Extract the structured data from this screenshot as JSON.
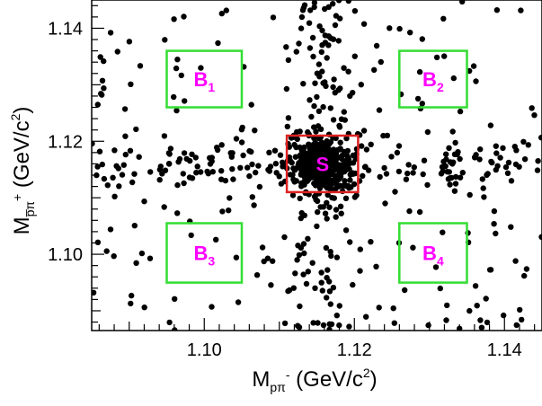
{
  "chart_data": {
    "type": "scatter",
    "title": "",
    "xlabel": {
      "main": "M",
      "sub": "pπ",
      "sup": "-",
      "unit": " (GeV/c",
      "unit_sup": "2",
      "close": ")"
    },
    "ylabel": {
      "main": "M",
      "sub": "p̅π",
      "sup": "+",
      "unit": " (GeV/c",
      "unit_sup": "2",
      "close": ")"
    },
    "xlim": [
      1.085,
      1.145
    ],
    "ylim": [
      1.0865,
      1.145
    ],
    "xticks": [
      1.1,
      1.12,
      1.14
    ],
    "yticks": [
      1.1,
      1.12,
      1.14
    ],
    "xtick_labels": [
      "1.10",
      "1.12",
      "1.14"
    ],
    "ytick_labels": [
      "1.10",
      "1.12",
      "1.14"
    ],
    "grid": false,
    "regions": [
      {
        "name": "B1",
        "letter": "B",
        "index": "1",
        "x": [
          1.095,
          1.105
        ],
        "y": [
          1.126,
          1.136
        ],
        "color": "#33dd33"
      },
      {
        "name": "B2",
        "letter": "B",
        "index": "2",
        "x": [
          1.126,
          1.135
        ],
        "y": [
          1.126,
          1.136
        ],
        "color": "#33dd33"
      },
      {
        "name": "S",
        "letter": "S",
        "index": "",
        "x": [
          1.111,
          1.1205
        ],
        "y": [
          1.111,
          1.121
        ],
        "color": "#dd2222"
      },
      {
        "name": "B3",
        "letter": "B",
        "index": "3",
        "x": [
          1.095,
          1.105
        ],
        "y": [
          1.095,
          1.1055
        ],
        "color": "#33dd33"
      },
      {
        "name": "B4",
        "letter": "B",
        "index": "4",
        "x": [
          1.126,
          1.135
        ],
        "y": [
          1.095,
          1.1055
        ],
        "color": "#33dd33"
      }
    ],
    "region_label_color": "#ff00ff",
    "marker_color": "#000000",
    "points": {
      "center": [
        1.1157,
        1.1158
      ],
      "core": {
        "n": 340,
        "sigma_x": 0.0022,
        "sigma_y": 0.0024
      },
      "horizontal_band": {
        "n": 150,
        "sigma_y": 0.0024
      },
      "vertical_band": {
        "n": 150,
        "sigma_x": 0.0024
      },
      "background": {
        "n": 210
      }
    }
  }
}
